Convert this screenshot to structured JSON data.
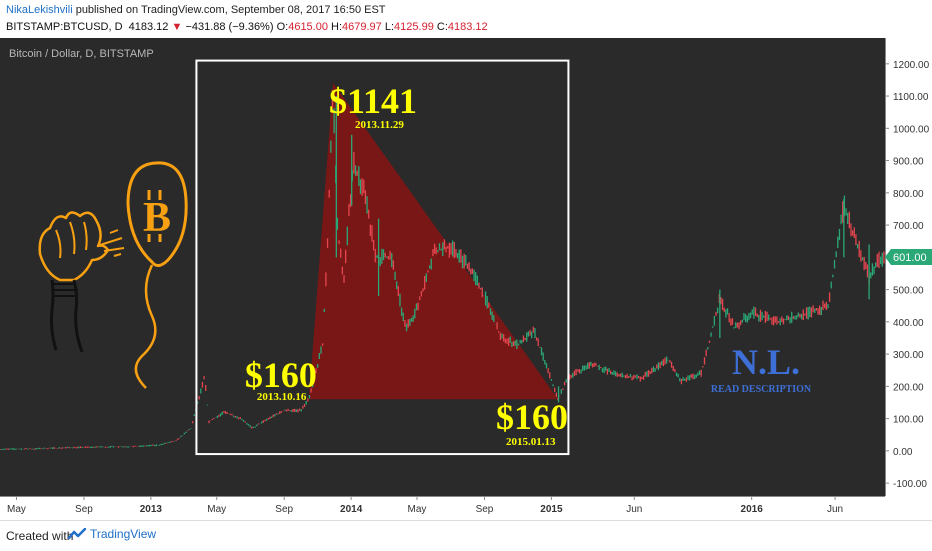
{
  "header": {
    "author": "NikaLekishvili",
    "published": " published on TradingView.com, September 08, 2017 16:50 EST",
    "symbol": "BITSTAMP:BTCUSD, D",
    "last": "4183.12",
    "down_arrow": "▼",
    "change": "−431.88 (−9.36%)",
    "o_label": "O:",
    "o_val": "4615.00",
    "h_label": "H:",
    "h_val": "4679.97",
    "l_label": "L:",
    "l_val": "4125.99",
    "c_label": "C:",
    "c_val": "4183.12"
  },
  "chart_title": "Bitcoin / Dollar, D, BITSTAMP",
  "price_label": "601.00",
  "annotations": {
    "peak_price": "$1141",
    "peak_date": "2013.11.29",
    "start_price": "$160",
    "start_date": "2013.10.16",
    "end_price": "$160",
    "end_date": "2015.01.13",
    "signature": "N.L.",
    "signature_note": "READ DESCRIPTION"
  },
  "footer": {
    "created": "Created with",
    "brand": "TradingView"
  },
  "colors": {
    "background": "#2a2a2a",
    "candle_up": "#2aa876",
    "candle_down": "#e5464f",
    "triangle": "#8b1414",
    "annotation_text": "#ffff00",
    "signature": "#3d6fd6",
    "frame": "#ffffff",
    "balloon": "#f7a012"
  },
  "chart_data": {
    "type": "line",
    "title": "Bitcoin / Dollar, D, BITSTAMP",
    "y_range": [
      -140,
      1280
    ],
    "y_ticks": [
      -100,
      0,
      100,
      200,
      300,
      400,
      500,
      600,
      700,
      800,
      900,
      1000,
      1100,
      1200
    ],
    "y_tick_labels": [
      "-100.00",
      "0.00",
      "100.00",
      "200.00",
      "300.00",
      "400.00",
      "500.00",
      "600.00",
      "700.00",
      "800.00",
      "900.00",
      "1000.00",
      "1100.00",
      "1200.00"
    ],
    "x_range": [
      "2012-04-01",
      "2016-08-31"
    ],
    "x_ticks": [
      {
        "date": "2012-05-01",
        "label": "May",
        "bold": false
      },
      {
        "date": "2012-09-01",
        "label": "Sep",
        "bold": false
      },
      {
        "date": "2013-01-01",
        "label": "2013",
        "bold": true
      },
      {
        "date": "2013-05-01",
        "label": "May",
        "bold": false
      },
      {
        "date": "2013-09-01",
        "label": "Sep",
        "bold": false
      },
      {
        "date": "2014-01-01",
        "label": "2014",
        "bold": true
      },
      {
        "date": "2014-05-01",
        "label": "May",
        "bold": false
      },
      {
        "date": "2014-09-01",
        "label": "Sep",
        "bold": false
      },
      {
        "date": "2015-01-01",
        "label": "2015",
        "bold": true
      },
      {
        "date": "2015-06-01",
        "label": "Jun",
        "bold": false
      },
      {
        "date": "2016-01-01",
        "label": "2016",
        "bold": true
      },
      {
        "date": "2016-06-01",
        "label": "Jun",
        "bold": false
      }
    ],
    "series": [
      {
        "values": [
          {
            "x": "2012-04-01",
            "y": 5
          },
          {
            "x": "2012-06-01",
            "y": 6
          },
          {
            "x": "2012-08-01",
            "y": 10
          },
          {
            "x": "2012-10-01",
            "y": 12
          },
          {
            "x": "2012-12-01",
            "y": 13
          },
          {
            "x": "2013-01-15",
            "y": 18
          },
          {
            "x": "2013-02-15",
            "y": 30
          },
          {
            "x": "2013-03-15",
            "y": 70
          },
          {
            "x": "2013-04-09",
            "y": 230
          },
          {
            "x": "2013-04-17",
            "y": 90
          },
          {
            "x": "2013-05-15",
            "y": 120
          },
          {
            "x": "2013-06-15",
            "y": 100
          },
          {
            "x": "2013-07-05",
            "y": 70
          },
          {
            "x": "2013-08-01",
            "y": 98
          },
          {
            "x": "2013-09-01",
            "y": 125
          },
          {
            "x": "2013-10-01",
            "y": 125
          },
          {
            "x": "2013-10-16",
            "y": 160
          },
          {
            "x": "2013-11-10",
            "y": 330
          },
          {
            "x": "2013-11-18",
            "y": 600
          },
          {
            "x": "2013-11-29",
            "y": 1141
          },
          {
            "x": "2013-12-07",
            "y": 700
          },
          {
            "x": "2013-12-18",
            "y": 520
          },
          {
            "x": "2014-01-05",
            "y": 900
          },
          {
            "x": "2014-01-25",
            "y": 800
          },
          {
            "x": "2014-02-15",
            "y": 600
          },
          {
            "x": "2014-03-15",
            "y": 600
          },
          {
            "x": "2014-04-10",
            "y": 380
          },
          {
            "x": "2014-05-01",
            "y": 440
          },
          {
            "x": "2014-06-01",
            "y": 620
          },
          {
            "x": "2014-07-01",
            "y": 630
          },
          {
            "x": "2014-08-01",
            "y": 580
          },
          {
            "x": "2014-09-01",
            "y": 480
          },
          {
            "x": "2014-10-01",
            "y": 350
          },
          {
            "x": "2014-11-01",
            "y": 330
          },
          {
            "x": "2014-12-01",
            "y": 370
          },
          {
            "x": "2015-01-13",
            "y": 160
          },
          {
            "x": "2015-02-01",
            "y": 230
          },
          {
            "x": "2015-03-15",
            "y": 270
          },
          {
            "x": "2015-05-01",
            "y": 235
          },
          {
            "x": "2015-06-15",
            "y": 225
          },
          {
            "x": "2015-08-01",
            "y": 285
          },
          {
            "x": "2015-08-25",
            "y": 215
          },
          {
            "x": "2015-10-01",
            "y": 240
          },
          {
            "x": "2015-11-04",
            "y": 470
          },
          {
            "x": "2015-12-01",
            "y": 380
          },
          {
            "x": "2016-01-01",
            "y": 430
          },
          {
            "x": "2016-02-15",
            "y": 400
          },
          {
            "x": "2016-04-01",
            "y": 420
          },
          {
            "x": "2016-05-20",
            "y": 450
          },
          {
            "x": "2016-06-17",
            "y": 760
          },
          {
            "x": "2016-07-10",
            "y": 650
          },
          {
            "x": "2016-08-02",
            "y": 540
          },
          {
            "x": "2016-08-20",
            "y": 590
          },
          {
            "x": "2016-08-31",
            "y": 601
          }
        ]
      }
    ],
    "highlight_triangle": [
      {
        "x": "2013-10-16",
        "y": 160
      },
      {
        "x": "2013-11-29",
        "y": 1141
      },
      {
        "x": "2015-01-13",
        "y": 160
      }
    ],
    "highlight_box": {
      "x": [
        "2013-03-25",
        "2015-02-01"
      ],
      "y": [
        -10,
        1210
      ]
    },
    "last_value": 601,
    "grid": false,
    "legend": "none"
  }
}
